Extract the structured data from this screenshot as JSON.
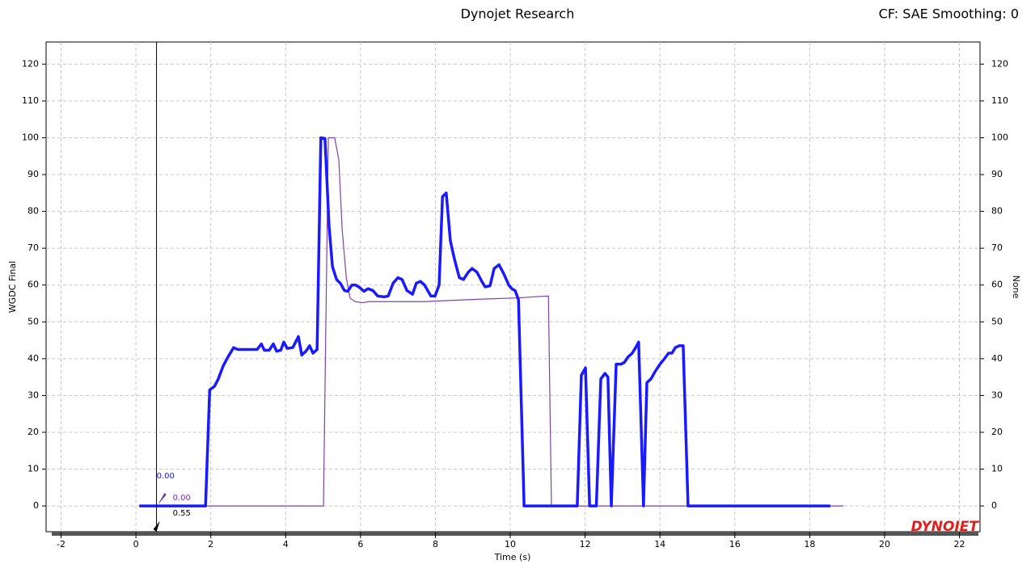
{
  "chart_data": {
    "type": "line",
    "title": "Dynojet Research",
    "subtitle": "CF: SAE Smoothing: 0",
    "logo": "DYNOJET",
    "x_label": "Time (s)",
    "y_label": "WGDC Final",
    "y2_label": "None",
    "xlim": [
      -2.4,
      22.55
    ],
    "xticks": [
      -2,
      0,
      2,
      4,
      6,
      8,
      10,
      12,
      14,
      16,
      18,
      20,
      22
    ],
    "ylim": [
      -7,
      126
    ],
    "yticks": [
      0,
      10,
      20,
      30,
      40,
      50,
      60,
      70,
      80,
      90,
      100,
      110,
      120
    ],
    "y2lim": [
      -7,
      126
    ],
    "y2ticks": [
      0,
      10,
      20,
      30,
      40,
      50,
      60,
      70,
      80,
      90,
      100,
      110,
      120
    ],
    "grid": true,
    "series": [
      {
        "color": "#1a1aff",
        "width": 3.5,
        "x": [
          0.09,
          1.86,
          1.97,
          2.1,
          2.2,
          2.33,
          2.46,
          2.61,
          2.72,
          3.24,
          3.35,
          3.43,
          3.56,
          3.67,
          3.76,
          3.87,
          3.95,
          4.04,
          4.19,
          4.34,
          4.43,
          4.54,
          4.64,
          4.73,
          4.84,
          4.94,
          5.05,
          5.16,
          5.25,
          5.36,
          5.46,
          5.57,
          5.66,
          5.77,
          5.87,
          5.98,
          6.09,
          6.2,
          6.33,
          6.46,
          6.63,
          6.74,
          6.87,
          7.0,
          7.11,
          7.24,
          7.39,
          7.49,
          7.6,
          7.71,
          7.88,
          7.99,
          8.1,
          8.19,
          8.29,
          8.4,
          8.51,
          8.64,
          8.75,
          8.88,
          8.98,
          9.11,
          9.24,
          9.33,
          9.46,
          9.57,
          9.7,
          9.83,
          9.96,
          10.04,
          10.13,
          10.22,
          10.37,
          11.79,
          11.9,
          12.01,
          12.12,
          12.3,
          12.42,
          12.53,
          12.61,
          12.7,
          12.83,
          12.96,
          13.05,
          13.15,
          13.26,
          13.35,
          13.43,
          13.56,
          13.65,
          13.76,
          13.87,
          14.0,
          14.12,
          14.23,
          14.32,
          14.41,
          14.51,
          14.62,
          14.75,
          18.55
        ],
        "values": [
          0,
          0,
          31.5,
          32.5,
          34.5,
          38,
          40.5,
          43,
          42.5,
          42.5,
          44,
          42.3,
          42.3,
          44,
          42,
          42.3,
          44.5,
          42.8,
          43,
          46,
          41,
          42,
          43.5,
          41.5,
          42.5,
          100,
          99.8,
          76,
          65,
          61.5,
          60.5,
          58.5,
          58.3,
          60,
          60,
          59.3,
          58.3,
          59,
          58.5,
          57,
          56.8,
          57,
          60.5,
          62,
          61.5,
          58.5,
          57.5,
          60.5,
          61,
          60,
          57,
          57,
          60,
          84,
          85,
          72,
          67,
          62,
          61.5,
          63.5,
          64.5,
          63.5,
          61,
          59.5,
          59.8,
          64.5,
          65.5,
          63,
          60,
          59,
          58.5,
          56,
          0,
          0,
          35.5,
          37.5,
          0,
          0,
          34.5,
          36,
          35,
          0,
          38.5,
          38.5,
          39,
          40.5,
          41.5,
          43,
          44.5,
          0,
          33.5,
          34.5,
          36.5,
          38.5,
          40,
          41.5,
          41.5,
          43,
          43.5,
          43.5,
          0,
          0
        ]
      },
      {
        "color": "#8040a8",
        "width": 1.2,
        "axis": "y2",
        "x": [
          0.09,
          5.01,
          5.14,
          5.31,
          5.42,
          5.51,
          5.62,
          5.72,
          5.85,
          6.07,
          6.22,
          7.08,
          7.73,
          8.37,
          9.33,
          10.19,
          10.63,
          11.02,
          11.1,
          18.9
        ],
        "values": [
          0,
          0,
          100,
          100,
          94,
          75,
          62,
          56.5,
          55.5,
          55.2,
          55.5,
          55.5,
          55.5,
          55.8,
          56.2,
          56.5,
          56.8,
          57,
          0,
          0
        ]
      }
    ],
    "cursor": {
      "x": 0.55,
      "label": "0.55",
      "readouts": [
        {
          "value": 0,
          "label": "0.00",
          "color": "#1a1aff"
        },
        {
          "value": 0,
          "label": "0.00",
          "color": "#7030a0"
        }
      ]
    }
  }
}
